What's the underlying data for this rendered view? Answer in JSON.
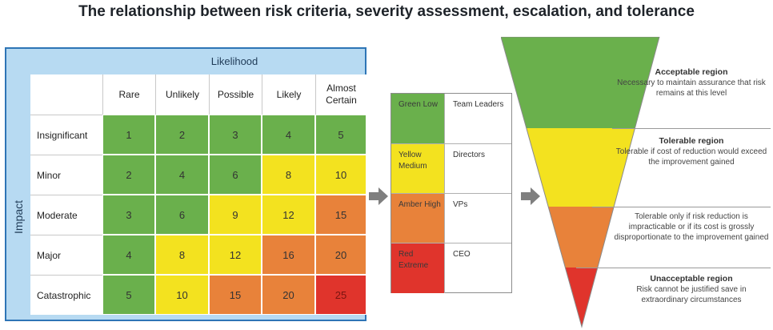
{
  "title": "The relationship between risk criteria, severity assessment, escalation, and tolerance",
  "matrix": {
    "likelihood_label": "Likelihood",
    "impact_label": "Impact",
    "columns": [
      "Rare",
      "Unlikely",
      "Possible",
      "Likely",
      "Almost Certain"
    ],
    "rows": [
      {
        "label": "Insignificant",
        "values": [
          "1",
          "2",
          "3",
          "4",
          "5"
        ],
        "colors": [
          "g",
          "g",
          "g",
          "g",
          "g"
        ]
      },
      {
        "label": "Minor",
        "values": [
          "2",
          "4",
          "6",
          "8",
          "10"
        ],
        "colors": [
          "g",
          "g",
          "g",
          "y",
          "y"
        ]
      },
      {
        "label": "Moderate",
        "values": [
          "3",
          "6",
          "9",
          "12",
          "15"
        ],
        "colors": [
          "g",
          "g",
          "y",
          "y",
          "o"
        ]
      },
      {
        "label": "Major",
        "values": [
          "4",
          "8",
          "12",
          "16",
          "20"
        ],
        "colors": [
          "g",
          "y",
          "y",
          "o",
          "o"
        ]
      },
      {
        "label": "Catastrophic",
        "values": [
          "5",
          "10",
          "15",
          "20",
          "25"
        ],
        "colors": [
          "g",
          "y",
          "o",
          "o",
          "r"
        ]
      }
    ],
    "color_map": {
      "g": "#6ab04c",
      "y": "#f3e21f",
      "o": "#e8823a",
      "r": "#e0342c"
    }
  },
  "escalation": [
    {
      "level": "Green Low",
      "role": "Team Leaders",
      "color": "#6ab04c"
    },
    {
      "level": "Yellow Medium",
      "role": "Directors",
      "color": "#f3e21f"
    },
    {
      "level": "Amber High",
      "role": "VPs",
      "color": "#e8823a"
    },
    {
      "level": "Red Extreme",
      "role": "CEO",
      "color": "#e0342c"
    }
  ],
  "regions": [
    {
      "title": "Acceptable region",
      "text": "Necessary to maintain assurance that risk remains at this level"
    },
    {
      "title": "Tolerable region",
      "text": "Tolerable if cost of reduction would exceed the improvement gained"
    },
    {
      "title": "",
      "text": "Tolerable only if risk reduction is impracticable or if its cost is grossly disproportionate to the improvement gained"
    },
    {
      "title": "Unacceptable region",
      "text": "Risk cannot be justified save in extraordinary circumstances"
    }
  ],
  "funnel_colors": [
    "#6ab04c",
    "#f3e21f",
    "#e8823a",
    "#e0342c"
  ]
}
